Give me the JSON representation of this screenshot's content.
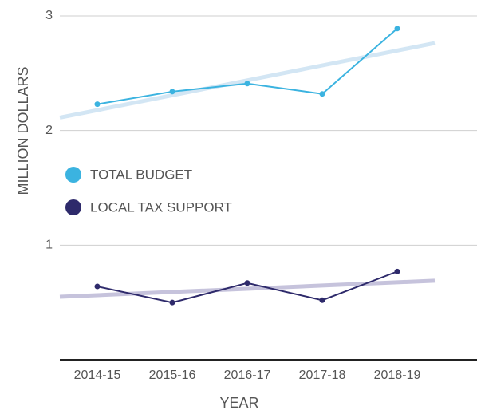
{
  "chart_data": {
    "type": "line",
    "x_label": "YEAR",
    "y_label": "MILLION DOLLARS",
    "categories": [
      "2014-15",
      "2015-16",
      "2016-17",
      "2017-18",
      "2018-19"
    ],
    "series": [
      {
        "name": "TOTAL BUDGET",
        "color": "#3bb3e0",
        "trend_color": "#d3e6f4",
        "values": [
          2.23,
          2.34,
          2.41,
          2.32,
          2.89
        ]
      },
      {
        "name": "LOCAL TAX SUPPORT",
        "color": "#2e2a6b",
        "trend_color": "#c6c3dc",
        "values": [
          0.64,
          0.5,
          0.67,
          0.52,
          0.77
        ]
      }
    ],
    "trendlines": true,
    "ylim": [
      0,
      3
    ],
    "yticks": [
      1,
      2,
      3
    ],
    "grid": true,
    "legend": "middle-left"
  }
}
